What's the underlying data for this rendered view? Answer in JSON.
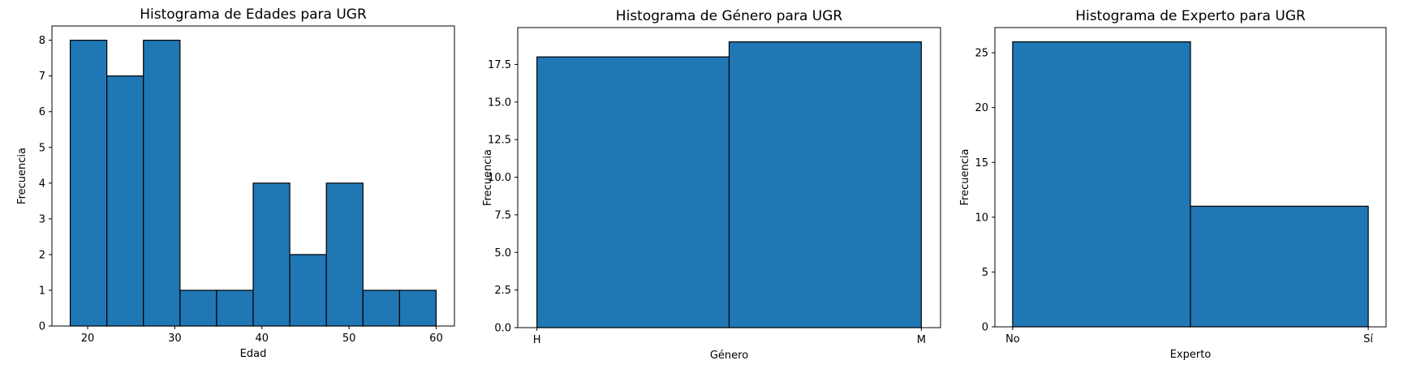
{
  "chart_data": [
    {
      "type": "bar",
      "title": "Histograma de Edades para UGR",
      "xlabel": "Edad",
      "ylabel": "Frecuencia",
      "bins": [
        {
          "start": 18.0,
          "end": 22.2,
          "count": 8
        },
        {
          "start": 22.2,
          "end": 26.4,
          "count": 7
        },
        {
          "start": 26.4,
          "end": 30.6,
          "count": 8
        },
        {
          "start": 30.6,
          "end": 34.8,
          "count": 1
        },
        {
          "start": 34.8,
          "end": 39.0,
          "count": 1
        },
        {
          "start": 39.0,
          "end": 43.2,
          "count": 4
        },
        {
          "start": 43.2,
          "end": 47.4,
          "count": 2
        },
        {
          "start": 47.4,
          "end": 51.6,
          "count": 4
        },
        {
          "start": 51.6,
          "end": 55.8,
          "count": 1
        },
        {
          "start": 55.8,
          "end": 60.0,
          "count": 1
        }
      ],
      "xlim": [
        15.9,
        62.1
      ],
      "ylim": [
        0,
        8.4
      ],
      "xticks": [
        {
          "value": 20,
          "label": "20"
        },
        {
          "value": 30,
          "label": "30"
        },
        {
          "value": 40,
          "label": "40"
        },
        {
          "value": 50,
          "label": "50"
        },
        {
          "value": 60,
          "label": "60"
        }
      ],
      "yticks": [
        {
          "value": 0,
          "label": "0"
        },
        {
          "value": 1,
          "label": "1"
        },
        {
          "value": 2,
          "label": "2"
        },
        {
          "value": 3,
          "label": "3"
        },
        {
          "value": 4,
          "label": "4"
        },
        {
          "value": 5,
          "label": "5"
        },
        {
          "value": 6,
          "label": "6"
        },
        {
          "value": 7,
          "label": "7"
        },
        {
          "value": 8,
          "label": "8"
        }
      ],
      "bar_color": "#1f77b4",
      "edge_color": "#000000",
      "grid": false
    },
    {
      "type": "bar",
      "title": "Histograma de Género para UGR",
      "xlabel": "Género",
      "ylabel": "Frecuencia",
      "bins": [
        {
          "start": 0.0,
          "end": 0.5,
          "count": 18
        },
        {
          "start": 0.5,
          "end": 1.0,
          "count": 19
        }
      ],
      "xlim": [
        -0.05,
        1.05
      ],
      "ylim": [
        0,
        19.95
      ],
      "xticks": [
        {
          "value": 0,
          "label": "H"
        },
        {
          "value": 1,
          "label": "M"
        }
      ],
      "yticks": [
        {
          "value": 0,
          "label": "0.0"
        },
        {
          "value": 2.5,
          "label": "2.5"
        },
        {
          "value": 5,
          "label": "5.0"
        },
        {
          "value": 7.5,
          "label": "7.5"
        },
        {
          "value": 10,
          "label": "10.0"
        },
        {
          "value": 12.5,
          "label": "12.5"
        },
        {
          "value": 15,
          "label": "15.0"
        },
        {
          "value": 17.5,
          "label": "17.5"
        }
      ],
      "bar_color": "#1f77b4",
      "edge_color": "#000000",
      "grid": false
    },
    {
      "type": "bar",
      "title": "Histograma de Experto para UGR",
      "xlabel": "Experto",
      "ylabel": "Frecuencia",
      "bins": [
        {
          "start": 0.0,
          "end": 0.5,
          "count": 26
        },
        {
          "start": 0.5,
          "end": 1.0,
          "count": 11
        }
      ],
      "xlim": [
        -0.05,
        1.05
      ],
      "ylim": [
        0,
        27.3
      ],
      "xticks": [
        {
          "value": 0,
          "label": "No"
        },
        {
          "value": 1,
          "label": "Sí"
        }
      ],
      "yticks": [
        {
          "value": 0,
          "label": "0"
        },
        {
          "value": 5,
          "label": "5"
        },
        {
          "value": 10,
          "label": "10"
        },
        {
          "value": 15,
          "label": "15"
        },
        {
          "value": 20,
          "label": "20"
        },
        {
          "value": 25,
          "label": "25"
        }
      ],
      "bar_color": "#1f77b4",
      "edge_color": "#000000",
      "grid": false
    }
  ]
}
